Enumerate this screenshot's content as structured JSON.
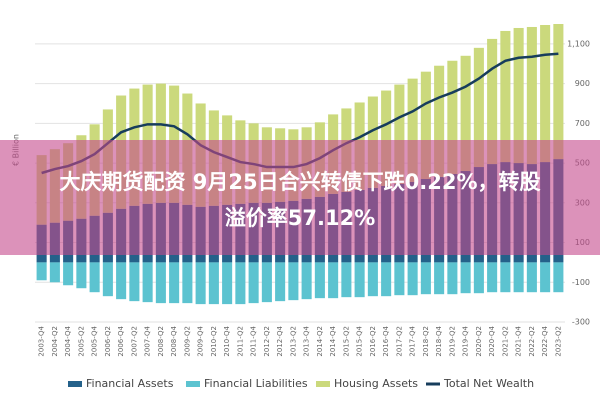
{
  "chart_data": {
    "type": "bar",
    "y_label": "€ Billion",
    "categories": [
      "2003-Q4",
      "2004-Q2",
      "2004-Q4",
      "2005-Q2",
      "2005-Q4",
      "2006-Q2",
      "2006-Q4",
      "2007-Q2",
      "2007-Q4",
      "2008-Q2",
      "2008-Q4",
      "2009-Q2",
      "2009-Q4",
      "2010-Q2",
      "2010-Q4",
      "2011-Q2",
      "2011-Q4",
      "2012-Q2",
      "2012-Q4",
      "2013-Q2",
      "2013-Q4",
      "2014-Q2",
      "2014-Q4",
      "2015-Q2",
      "2015-Q4",
      "2016-Q2",
      "2016-Q4",
      "2017-Q2",
      "2017-Q4",
      "2018-Q2",
      "2018-Q4",
      "2019-Q2",
      "2019-Q4",
      "2020-Q2",
      "2020-Q4",
      "2021-Q2",
      "2021-Q4",
      "2022-Q2",
      "2022-Q4",
      "2023-Q2"
    ],
    "series": [
      {
        "name": "Financial Assets",
        "color": "#24618a",
        "values": [
          190,
          200,
          210,
          220,
          235,
          250,
          270,
          285,
          295,
          300,
          300,
          290,
          280,
          285,
          290,
          295,
          300,
          300,
          305,
          310,
          320,
          330,
          345,
          355,
          365,
          375,
          385,
          395,
          405,
          420,
          430,
          445,
          460,
          480,
          495,
          505,
          500,
          495,
          505,
          520
        ]
      },
      {
        "name": "Financial Liabilities",
        "color": "#5cc3d0",
        "values": [
          -90,
          -100,
          -115,
          -130,
          -150,
          -170,
          -185,
          -195,
          -200,
          -205,
          -205,
          -205,
          -210,
          -210,
          -210,
          -210,
          -205,
          -200,
          -195,
          -190,
          -185,
          -180,
          -180,
          -175,
          -175,
          -170,
          -170,
          -165,
          -165,
          -160,
          -160,
          -160,
          -155,
          -155,
          -150,
          -150,
          -150,
          -150,
          -150,
          -150
        ]
      },
      {
        "name": "Housing Assets",
        "color": "#cbd97c",
        "values": [
          350,
          370,
          390,
          420,
          460,
          520,
          570,
          590,
          600,
          600,
          590,
          560,
          520,
          480,
          450,
          420,
          400,
          380,
          370,
          360,
          360,
          375,
          400,
          420,
          440,
          460,
          480,
          500,
          520,
          540,
          560,
          570,
          580,
          600,
          630,
          660,
          680,
          690,
          690,
          680
        ]
      },
      {
        "name": "Total Net Wealth",
        "color": "#173d5c",
        "line": true,
        "values": [
          450,
          470,
          485,
          510,
          545,
          600,
          655,
          680,
          695,
          695,
          685,
          645,
          590,
          555,
          530,
          505,
          495,
          480,
          480,
          480,
          495,
          525,
          565,
          600,
          630,
          665,
          695,
          730,
          760,
          800,
          830,
          855,
          885,
          925,
          975,
          1015,
          1030,
          1035,
          1045,
          1050
        ]
      }
    ],
    "ylim": [
      -300,
      1200
    ],
    "yticks": [
      -300,
      -100,
      100,
      300,
      500,
      700,
      900,
      {
        "value": 1100,
        "label": "1,100"
      }
    ],
    "grid": true,
    "legend": "bottom"
  },
  "banner": {
    "lines": [
      "大庆期货配资 9月25日合兴转债下跌0.22%，转股",
      "溢价率57.12%"
    ]
  }
}
